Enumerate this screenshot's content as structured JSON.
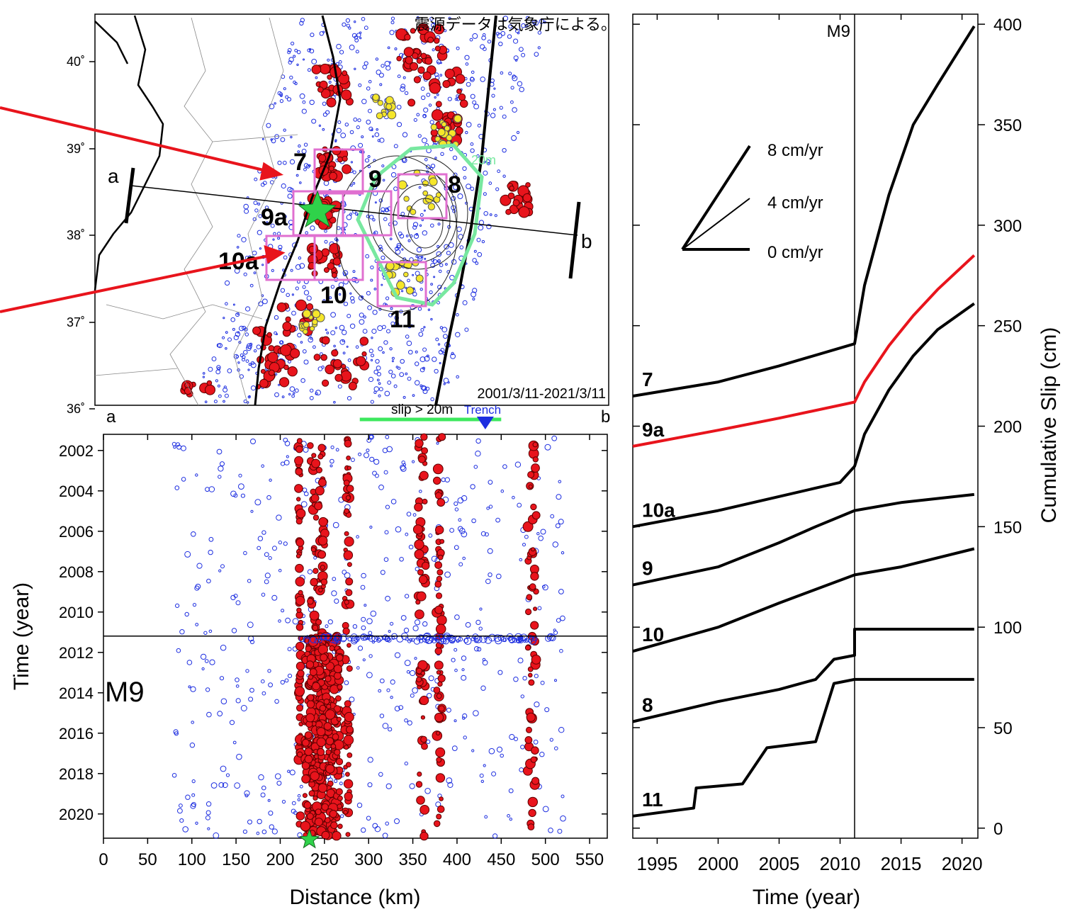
{
  "note_text": "震源データは気象庁による。",
  "chart_data": [
    {
      "type": "map",
      "lat_ticks": [
        "40˚",
        "39˚",
        "38˚",
        "37˚",
        "36˚"
      ],
      "period_label": "2001/3/11-2021/3/11",
      "profile_endpoints": [
        "a",
        "b"
      ],
      "slip_contour_label": "20m",
      "region_boxes": [
        "7",
        "9",
        "8",
        "9a",
        "10a",
        "10",
        "11"
      ]
    },
    {
      "type": "scatter",
      "xlabel": "Distance (km)",
      "ylabel": "Time (year)",
      "x_ticks": [
        0,
        50,
        100,
        150,
        200,
        250,
        300,
        350,
        400,
        450,
        500,
        550
      ],
      "y_ticks": [
        2002,
        2004,
        2006,
        2008,
        2010,
        2012,
        2014,
        2016,
        2018,
        2020
      ],
      "xlim": [
        0,
        570
      ],
      "ylim": [
        2001.2,
        2021.2
      ],
      "endpoint_labels": [
        "a",
        "b"
      ],
      "slip_label": "slip > 20m",
      "slip_range_km": [
        290,
        450
      ],
      "trench_label": "Trench",
      "trench_km": 432,
      "m9_label": "M9",
      "m9_time": 2011.19,
      "hypocenter_km": 233
    },
    {
      "type": "line",
      "xlabel": "Time (year)",
      "ylabel": "Cumulative Slip (cm)",
      "x_ticks": [
        1995,
        2000,
        2005,
        2010,
        2015,
        2020
      ],
      "y_ticks": [
        0,
        50,
        100,
        150,
        200,
        250,
        300,
        350,
        400
      ],
      "xlim": [
        1993,
        2021.3
      ],
      "ylim": [
        -5,
        405
      ],
      "m9_label": "M9",
      "m9_time": 2011.19,
      "rate_legend": [
        "8 cm/yr",
        "4 cm/yr",
        "0 cm/yr"
      ],
      "series": [
        {
          "name": "7",
          "color": "#000000",
          "points": [
            [
              1993,
              215
            ],
            [
              2000,
              222
            ],
            [
              2005,
              230
            ],
            [
              2011.19,
              241
            ],
            [
              2012,
              270
            ],
            [
              2014,
              315
            ],
            [
              2016,
              350
            ],
            [
              2018,
              370
            ],
            [
              2021,
              399
            ]
          ]
        },
        {
          "name": "9a",
          "color": "#e8141c",
          "points": [
            [
              1993,
              190
            ],
            [
              2000,
              198
            ],
            [
              2005,
              204
            ],
            [
              2011.19,
              212
            ],
            [
              2012,
              222
            ],
            [
              2014,
              240
            ],
            [
              2016,
              255
            ],
            [
              2018,
              268
            ],
            [
              2021,
              285
            ]
          ]
        },
        {
          "name": "10a",
          "color": "#000000",
          "points": [
            [
              1993,
              150
            ],
            [
              2000,
              158
            ],
            [
              2005,
              165
            ],
            [
              2010,
              172
            ],
            [
              2011.19,
              180
            ],
            [
              2012,
              196
            ],
            [
              2014,
              218
            ],
            [
              2016,
              235
            ],
            [
              2018,
              248
            ],
            [
              2021,
              261
            ]
          ]
        },
        {
          "name": "9",
          "color": "#000000",
          "points": [
            [
              1993,
              121
            ],
            [
              2000,
              130
            ],
            [
              2005,
              142
            ],
            [
              2008,
              150
            ],
            [
              2011.19,
              158
            ],
            [
              2015,
              162
            ],
            [
              2021,
              166
            ]
          ]
        },
        {
          "name": "10",
          "color": "#000000",
          "points": [
            [
              1993,
              88
            ],
            [
              2000,
              100
            ],
            [
              2005,
              112
            ],
            [
              2011.19,
              126
            ],
            [
              2015,
              130
            ],
            [
              2021,
              139
            ]
          ]
        },
        {
          "name": "8",
          "color": "#000000",
          "points": [
            [
              1993,
              53
            ],
            [
              2000,
              63
            ],
            [
              2005,
              69
            ],
            [
              2008,
              74
            ],
            [
              2009.5,
              84
            ],
            [
              2011.19,
              86
            ],
            [
              2011.19,
              99
            ],
            [
              2021,
              99
            ]
          ]
        },
        {
          "name": "11",
          "color": "#000000",
          "points": [
            [
              1993,
              6
            ],
            [
              1998,
              10
            ],
            [
              1998.2,
              20
            ],
            [
              2002,
              22
            ],
            [
              2004,
              40
            ],
            [
              2008,
              43
            ],
            [
              2009.5,
              72
            ],
            [
              2011.19,
              74
            ],
            [
              2021,
              74
            ]
          ]
        }
      ]
    }
  ]
}
